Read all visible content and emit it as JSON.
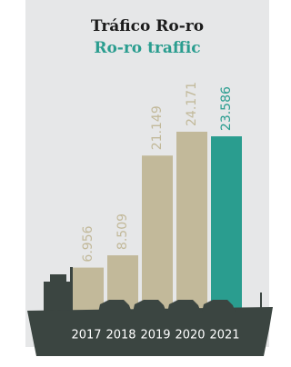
{
  "chart_data": {
    "type": "bar",
    "title": "Tráfico Ro-ro",
    "subtitle": "Ro-ro traffic",
    "categories": [
      "2017",
      "2018",
      "2019",
      "2020",
      "2021"
    ],
    "values": [
      6956,
      8509,
      21149,
      24171,
      23586
    ],
    "value_labels": [
      "6.956",
      "8.509",
      "21.149",
      "24.171",
      "23.586"
    ],
    "colors": [
      "#c2b99a",
      "#c2b99a",
      "#c2b99a",
      "#c2b99a",
      "#2a9d8f"
    ]
  }
}
